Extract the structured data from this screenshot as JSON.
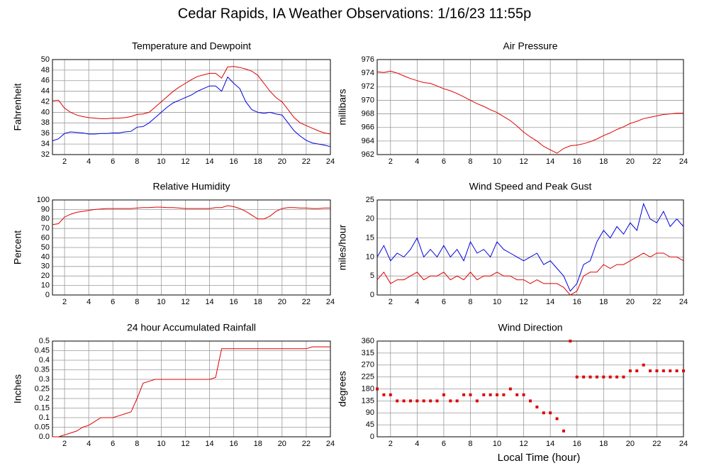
{
  "title": "Cedar Rapids, IA Weather Observations: 1/16/23 11:55p",
  "x_label": "Local Time (hour)",
  "chart_data": [
    {
      "type": "line",
      "title": "Temperature and Dewpoint",
      "y_label": "Fahrenheit",
      "grid": true,
      "xlim": [
        1,
        24
      ],
      "xticks": [
        2,
        4,
        6,
        8,
        10,
        12,
        14,
        16,
        18,
        20,
        22,
        24
      ],
      "ylim": [
        32,
        50
      ],
      "yticks": [
        32,
        34,
        36,
        38,
        40,
        42,
        44,
        46,
        48,
        50
      ],
      "x": [
        1,
        1.5,
        2,
        2.5,
        3,
        3.5,
        4,
        4.5,
        5,
        5.5,
        6,
        6.5,
        7,
        7.5,
        8,
        8.5,
        9,
        9.5,
        10,
        10.5,
        11,
        11.5,
        12,
        12.5,
        13,
        13.5,
        14,
        14.5,
        15,
        15.5,
        16,
        16.5,
        17,
        17.5,
        18,
        18.5,
        19,
        19.5,
        20,
        20.5,
        21,
        21.5,
        22,
        22.5,
        23,
        23.5,
        24
      ],
      "series": [
        {
          "color": "#e00000",
          "values": [
            42.2,
            42.3,
            40.8,
            40,
            39.5,
            39.2,
            39,
            38.9,
            38.8,
            38.8,
            38.9,
            38.9,
            39,
            39.2,
            39.6,
            39.7,
            40,
            41,
            42,
            43,
            44,
            44.8,
            45.5,
            46.2,
            46.8,
            47.1,
            47.4,
            47.4,
            46.5,
            48.6,
            48.7,
            48.5,
            48.2,
            47.8,
            47,
            45.5,
            44,
            42.8,
            42,
            40.5,
            39,
            38,
            37.5,
            37,
            36.5,
            36.1,
            35.9
          ]
        },
        {
          "color": "#0000e0",
          "values": [
            34.6,
            35,
            36,
            36.3,
            36.2,
            36.1,
            35.9,
            35.9,
            36,
            36,
            36.1,
            36.1,
            36.3,
            36.4,
            37.2,
            37.3,
            38,
            39,
            40,
            41,
            41.8,
            42.3,
            42.8,
            43.3,
            44,
            44.5,
            45,
            45,
            44,
            46.7,
            45.5,
            44.5,
            42,
            40.5,
            40,
            39.8,
            40,
            39.7,
            39.5,
            38,
            36.5,
            35.5,
            34.7,
            34.2,
            34,
            33.8,
            33.5
          ]
        }
      ]
    },
    {
      "type": "line",
      "title": "Air Pressure",
      "y_label": "millibars",
      "grid": true,
      "xlim": [
        1,
        24
      ],
      "xticks": [
        2,
        4,
        6,
        8,
        10,
        12,
        14,
        16,
        18,
        20,
        22,
        24
      ],
      "ylim": [
        962,
        976
      ],
      "yticks": [
        962,
        964,
        966,
        968,
        970,
        972,
        974,
        976
      ],
      "x": [
        1,
        1.5,
        2,
        2.5,
        3,
        3.5,
        4,
        4.5,
        5,
        5.5,
        6,
        6.5,
        7,
        7.5,
        8,
        8.5,
        9,
        9.5,
        10,
        10.5,
        11,
        11.5,
        12,
        12.5,
        13,
        13.5,
        14,
        14.5,
        15,
        15.5,
        16,
        16.5,
        17,
        17.5,
        18,
        18.5,
        19,
        19.5,
        20,
        20.5,
        21,
        21.5,
        22,
        22.5,
        23,
        23.5,
        24
      ],
      "series": [
        {
          "color": "#e00000",
          "values": [
            974.2,
            974.1,
            974.3,
            974,
            973.6,
            973.2,
            972.9,
            972.6,
            972.5,
            972.1,
            971.7,
            971.4,
            971,
            970.5,
            970,
            969.5,
            969.1,
            968.6,
            968.2,
            967.6,
            967,
            966.2,
            965.3,
            964.6,
            964,
            963.2,
            962.7,
            962.2,
            962.9,
            963.3,
            963.4,
            963.6,
            963.9,
            964.3,
            964.8,
            965.2,
            965.7,
            966.1,
            966.6,
            966.9,
            967.3,
            967.5,
            967.7,
            967.9,
            968,
            968.1,
            968.1
          ]
        }
      ]
    },
    {
      "type": "line",
      "title": "Relative Humidity",
      "y_label": "Percent",
      "grid": true,
      "xlim": [
        1,
        24
      ],
      "xticks": [
        2,
        4,
        6,
        8,
        10,
        12,
        14,
        16,
        18,
        20,
        22,
        24
      ],
      "ylim": [
        0,
        100
      ],
      "yticks": [
        0,
        10,
        20,
        30,
        40,
        50,
        60,
        70,
        80,
        90,
        100
      ],
      "x": [
        1,
        1.5,
        2,
        2.5,
        3,
        3.5,
        4,
        4.5,
        5,
        5.5,
        6,
        6.5,
        7,
        7.5,
        8,
        8.5,
        9,
        9.5,
        10,
        10.5,
        11,
        11.5,
        12,
        12.5,
        13,
        13.5,
        14,
        14.5,
        15,
        15.5,
        16,
        16.5,
        17,
        17.5,
        18,
        18.5,
        19,
        19.5,
        20,
        20.5,
        21,
        21.5,
        22,
        22.5,
        23,
        23.5,
        24
      ],
      "series": [
        {
          "color": "#e00000",
          "values": [
            74,
            75,
            82,
            85,
            87,
            88,
            89,
            90,
            90.5,
            91,
            91,
            91,
            91,
            91,
            91.5,
            92,
            92,
            92.5,
            92.5,
            92,
            92,
            91.5,
            91,
            91,
            91,
            91,
            91,
            92,
            92,
            94,
            93,
            91,
            88,
            84,
            80,
            80,
            83,
            88,
            91,
            92,
            92,
            91.5,
            91.5,
            91,
            91,
            91.5,
            91.5
          ]
        }
      ]
    },
    {
      "type": "line",
      "title": "Wind Speed and Peak Gust",
      "y_label": "miles/hour",
      "grid": true,
      "xlim": [
        1,
        24
      ],
      "xticks": [
        2,
        4,
        6,
        8,
        10,
        12,
        14,
        16,
        18,
        20,
        22,
        24
      ],
      "ylim": [
        0,
        25
      ],
      "yticks": [
        0,
        5,
        10,
        15,
        20,
        25
      ],
      "x": [
        1,
        1.5,
        2,
        2.5,
        3,
        3.5,
        4,
        4.5,
        5,
        5.5,
        6,
        6.5,
        7,
        7.5,
        8,
        8.5,
        9,
        9.5,
        10,
        10.5,
        11,
        11.5,
        12,
        12.5,
        13,
        13.5,
        14,
        14.5,
        15,
        15.5,
        16,
        16.5,
        17,
        17.5,
        18,
        18.5,
        19,
        19.5,
        20,
        20.5,
        21,
        21.5,
        22,
        22.5,
        23,
        23.5,
        24
      ],
      "series": [
        {
          "color": "#0000e0",
          "values": [
            10,
            13,
            9,
            11,
            10,
            12,
            15,
            10,
            12,
            10,
            13,
            10,
            12,
            9,
            14,
            11,
            12,
            10,
            14,
            12,
            11,
            10,
            9,
            10,
            11,
            8,
            9,
            7,
            5,
            1,
            3,
            8,
            9,
            14,
            17,
            15,
            18,
            16,
            19,
            17,
            24,
            20,
            19,
            22,
            18,
            20,
            18
          ]
        },
        {
          "color": "#e00000",
          "values": [
            4,
            6,
            3,
            4,
            4,
            5,
            6,
            4,
            5,
            5,
            6,
            4,
            5,
            4,
            6,
            4,
            5,
            5,
            6,
            5,
            5,
            4,
            4,
            3,
            4,
            3,
            3,
            3,
            2,
            0,
            1,
            5,
            6,
            6,
            8,
            7,
            8,
            8,
            9,
            10,
            11,
            10,
            11,
            11,
            10,
            10,
            9
          ]
        }
      ]
    },
    {
      "type": "line",
      "title": "24 hour Accumulated Rainfall",
      "y_label": "Inches",
      "grid": true,
      "xlim": [
        1,
        24
      ],
      "xticks": [
        2,
        4,
        6,
        8,
        10,
        12,
        14,
        16,
        18,
        20,
        22,
        24
      ],
      "ylim": [
        0,
        0.5
      ],
      "yticks": [
        {
          "value": 0,
          "label": "0.0"
        },
        0.05,
        0.1,
        0.15,
        0.2,
        0.25,
        0.3,
        0.35,
        0.4,
        0.45,
        0.5
      ],
      "x": [
        1,
        1.5,
        2,
        2.5,
        3,
        3.5,
        4,
        4.5,
        5,
        5.5,
        6,
        6.5,
        7,
        7.5,
        8,
        8.5,
        9,
        9.5,
        10,
        10.5,
        11,
        11.5,
        12,
        12.5,
        13,
        13.5,
        14,
        14.5,
        15,
        15.5,
        16,
        16.5,
        17,
        17.5,
        18,
        18.5,
        19,
        19.5,
        20,
        20.5,
        21,
        21.5,
        22,
        22.5,
        23,
        23.5,
        24
      ],
      "series": [
        {
          "color": "#e00000",
          "values": [
            0,
            0,
            0.01,
            0.02,
            0.03,
            0.05,
            0.06,
            0.08,
            0.1,
            0.1,
            0.1,
            0.11,
            0.12,
            0.13,
            0.2,
            0.28,
            0.29,
            0.3,
            0.3,
            0.3,
            0.3,
            0.3,
            0.3,
            0.3,
            0.3,
            0.3,
            0.3,
            0.31,
            0.46,
            0.46,
            0.46,
            0.46,
            0.46,
            0.46,
            0.46,
            0.46,
            0.46,
            0.46,
            0.46,
            0.46,
            0.46,
            0.46,
            0.46,
            0.47,
            0.47,
            0.47,
            0.47
          ]
        }
      ]
    },
    {
      "type": "scatter",
      "title": "Wind Direction",
      "y_label": "degrees",
      "grid": true,
      "xlim": [
        1,
        24
      ],
      "xticks": [
        2,
        4,
        6,
        8,
        10,
        12,
        14,
        16,
        18,
        20,
        22,
        24
      ],
      "ylim": [
        0,
        360
      ],
      "yticks": [
        0,
        45,
        90,
        135,
        180,
        225,
        270,
        315,
        360
      ],
      "x": [
        1,
        1.5,
        2,
        2.5,
        3,
        3.5,
        4,
        4.5,
        5,
        5.5,
        6,
        6.5,
        7,
        7.5,
        8,
        8.5,
        9,
        9.5,
        10,
        10.5,
        11,
        11.5,
        12,
        12.5,
        13,
        13.5,
        14,
        14.5,
        15,
        15.5,
        16,
        16.5,
        17,
        17.5,
        18,
        18.5,
        19,
        19.5,
        20,
        20.5,
        21,
        21.5,
        22,
        22.5,
        23,
        23.5,
        24
      ],
      "series": [
        {
          "color": "#e00000",
          "values": [
            180,
            158,
            158,
            135,
            135,
            135,
            135,
            135,
            135,
            135,
            158,
            135,
            135,
            158,
            158,
            135,
            158,
            158,
            158,
            158,
            180,
            158,
            158,
            135,
            112,
            90,
            90,
            68,
            22,
            360,
            225,
            225,
            225,
            225,
            225,
            225,
            225,
            225,
            248,
            248,
            270,
            248,
            248,
            248,
            248,
            248,
            248
          ]
        }
      ]
    }
  ]
}
